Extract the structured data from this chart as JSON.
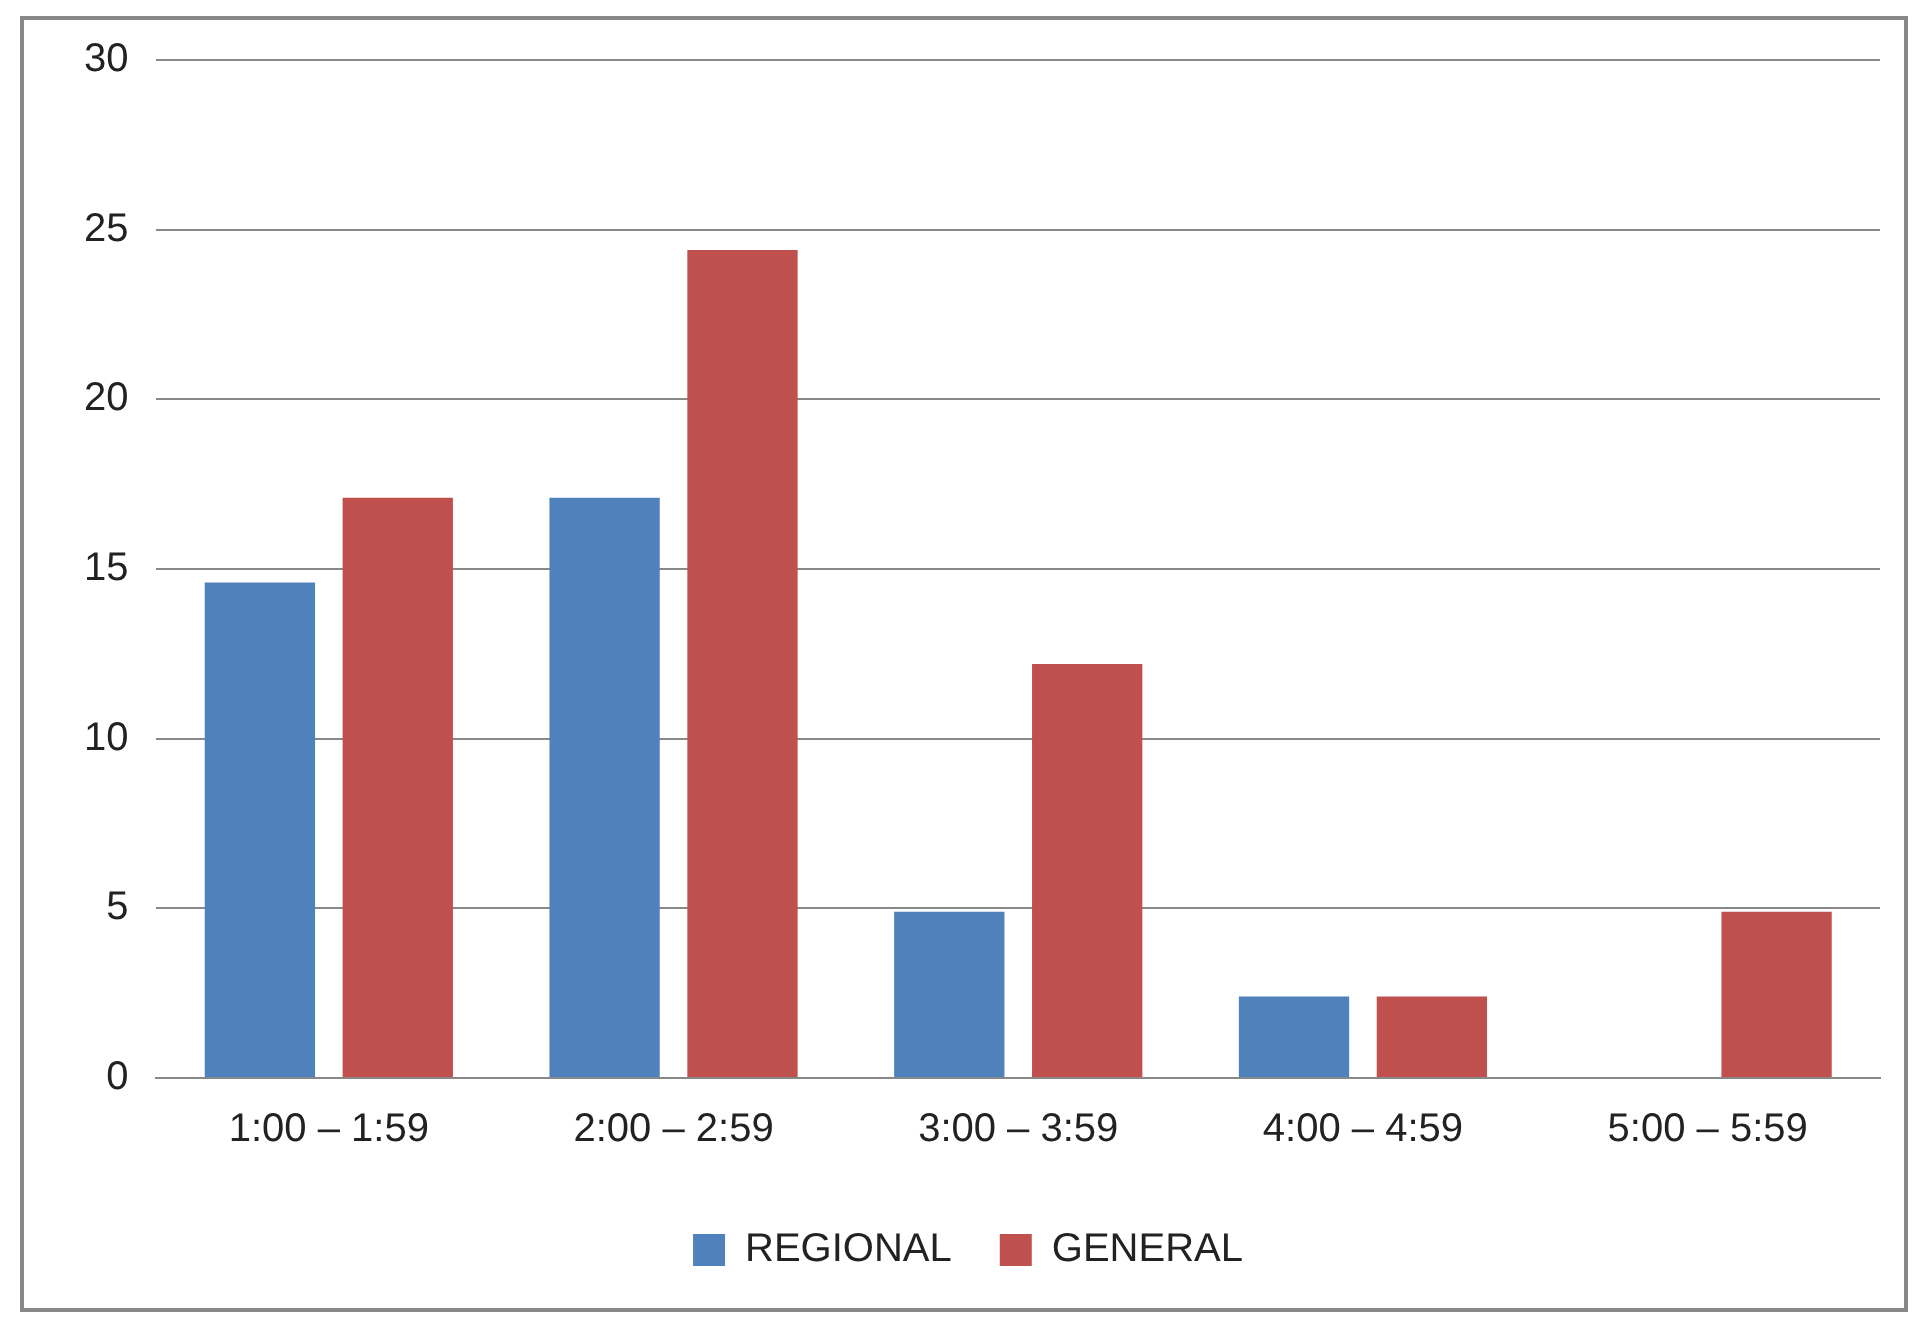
{
  "chart_data": {
    "type": "bar",
    "categories": [
      "1:00 – 1:59",
      "2:00 – 2:59",
      "3:00 – 3:59",
      "4:00 – 4:59",
      "5:00 – 5:59"
    ],
    "series": [
      {
        "name": "REGIONAL",
        "color": "#4f81bd",
        "values": [
          14.6,
          17.1,
          4.9,
          2.4,
          0
        ]
      },
      {
        "name": "GENERAL",
        "color": "#c0504d",
        "values": [
          17.1,
          24.4,
          12.2,
          2.4,
          4.9
        ]
      }
    ],
    "ylim": [
      0,
      30
    ],
    "yticks": [
      0,
      5,
      10,
      15,
      20,
      25,
      30
    ],
    "grid": "y",
    "legend": "bottom"
  }
}
